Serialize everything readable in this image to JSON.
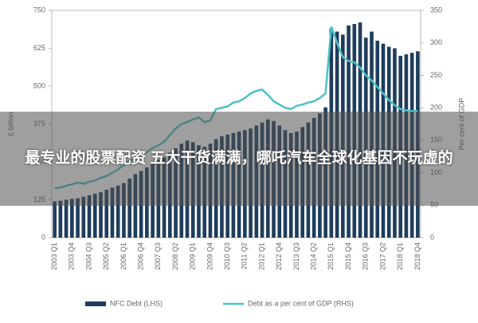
{
  "chart_data": {
    "type": "bar_line",
    "categories": [
      "2003 Q1",
      null,
      null,
      "2003 Q4",
      null,
      null,
      "2004 Q3",
      null,
      null,
      "2005 Q2",
      null,
      null,
      "2006 Q1",
      null,
      null,
      "2006 Q4",
      null,
      null,
      "2007 Q3",
      null,
      null,
      "2008 Q2",
      null,
      null,
      "2009 Q1",
      null,
      null,
      "2009 Q4",
      null,
      null,
      "2010 Q3",
      null,
      null,
      "2011 Q2",
      null,
      null,
      "2012 Q1",
      null,
      null,
      "2012 Q4",
      null,
      null,
      "2013 Q3",
      null,
      null,
      "2014 Q2",
      null,
      null,
      "2015 Q1",
      null,
      null,
      "2015 Q4",
      null,
      null,
      "2016 Q3",
      null,
      null,
      "2017 Q2",
      null,
      null,
      "2018 Q1",
      null,
      null,
      "2018 Q4"
    ],
    "series": [
      {
        "name": "NFC Debt (LHS)",
        "color": "#1f3d5c",
        "axis": "y",
        "values": [
          120,
          122,
          125,
          128,
          130,
          135,
          140,
          145,
          150,
          158,
          165,
          172,
          180,
          195,
          210,
          220,
          232,
          245,
          255,
          265,
          280,
          295,
          310,
          320,
          315,
          305,
          300,
          310,
          325,
          335,
          340,
          345,
          350,
          355,
          360,
          370,
          380,
          390,
          385,
          370,
          355,
          345,
          350,
          365,
          380,
          395,
          410,
          430,
          690,
          680,
          670,
          700,
          705,
          710,
          660,
          680,
          650,
          640,
          630,
          625,
          600,
          605,
          610,
          615
        ]
      },
      {
        "name": "Debt as a per cent of GDP (RHS)",
        "color": "#4fc1c6",
        "axis": "y2",
        "values": [
          76,
          77,
          80,
          82,
          85,
          83,
          86,
          88,
          92,
          95,
          100,
          105,
          112,
          118,
          122,
          128,
          132,
          138,
          142,
          148,
          158,
          168,
          175,
          178,
          182,
          185,
          178,
          180,
          198,
          200,
          202,
          208,
          210,
          215,
          222,
          226,
          228,
          220,
          210,
          205,
          200,
          198,
          203,
          205,
          208,
          210,
          215,
          222,
          325,
          300,
          278,
          272,
          270,
          262,
          250,
          242,
          232,
          222,
          212,
          204,
          198,
          196,
          195,
          195
        ]
      }
    ],
    "ylabel": "£ billion",
    "y2label": "Per cent of GDP",
    "ylim": [
      0,
      750
    ],
    "yticks": [
      0,
      125,
      250,
      375,
      500,
      625,
      750
    ],
    "y2lim": [
      0,
      350
    ],
    "y2ticks": [
      0,
      50,
      100,
      150,
      200,
      250,
      300,
      350
    ],
    "legend": "bottom"
  },
  "banner": {
    "text": "最专业的股票配资 五大干货满满，哪吒汽车全球化基因不玩虚的"
  }
}
